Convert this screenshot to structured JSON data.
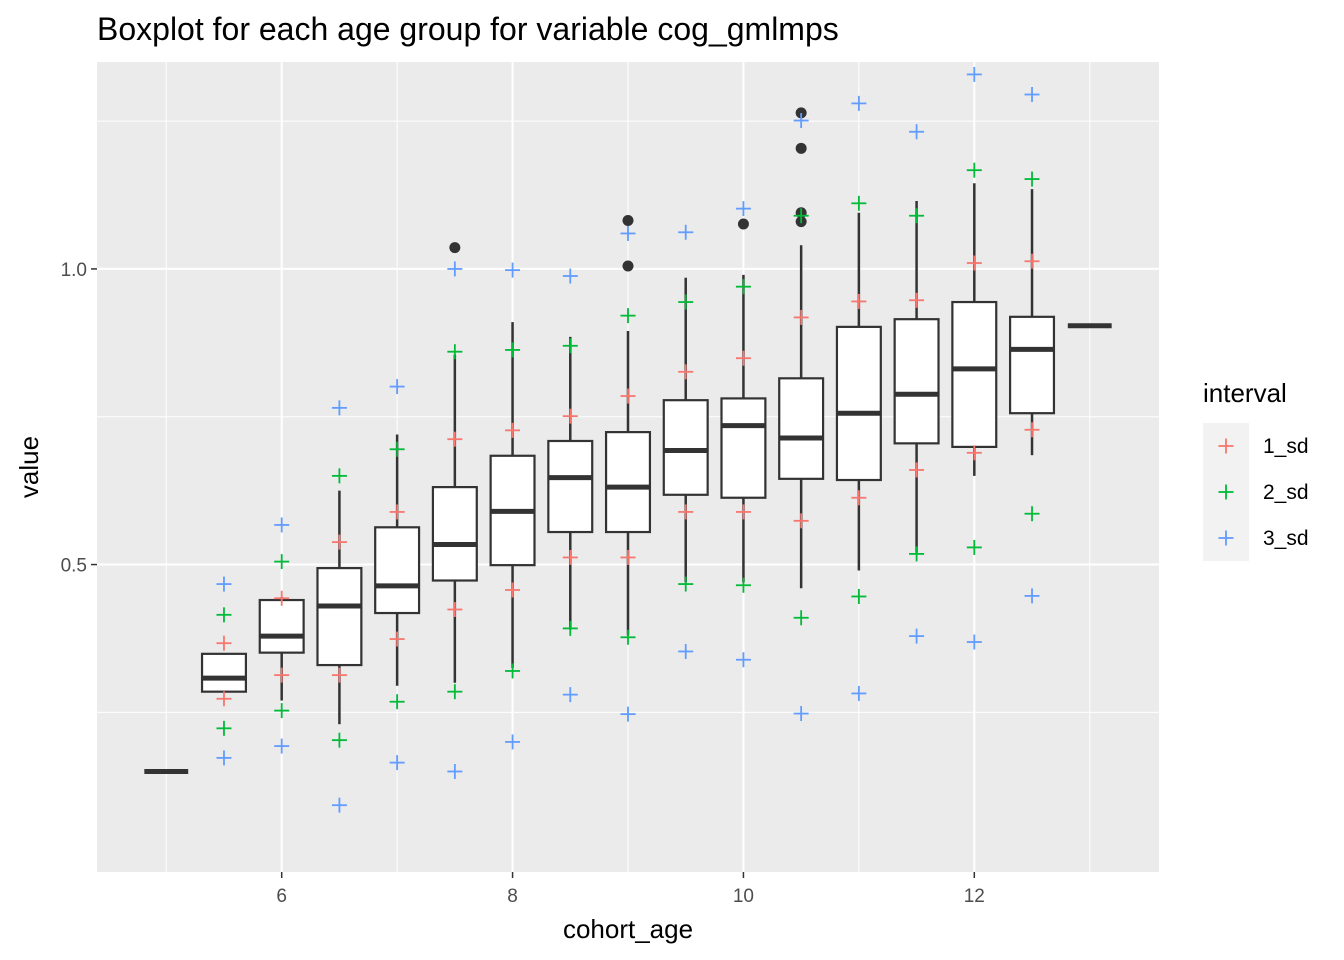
{
  "chart_data": {
    "type": "boxplot",
    "title": "Boxplot for each age group for variable cog_gmlmps",
    "xlabel": "cohort_age",
    "ylabel": "value",
    "xlim": [
      4.4,
      13.6
    ],
    "ylim": [
      -0.02,
      1.35
    ],
    "x_ticks": [
      6,
      8,
      10,
      12
    ],
    "x_tick_labels": [
      "6",
      "8",
      "10",
      "12"
    ],
    "y_ticks": [
      0.5,
      1.0
    ],
    "y_tick_labels": [
      "0.5",
      "1.0"
    ],
    "grid": true,
    "colors": {
      "panel": "#ebebeb",
      "grid": "#ffffff",
      "box_line": "#333333",
      "1_sd": "#f8766d",
      "2_sd": "#00ba38",
      "3_sd": "#619cff"
    },
    "legend": {
      "title": "interval",
      "position": "right",
      "entries": [
        "1_sd",
        "2_sd",
        "3_sd"
      ]
    },
    "boxes": [
      {
        "x": 5.0,
        "q1": 0.15,
        "median": 0.15,
        "q3": 0.15,
        "lower": 0.15,
        "upper": 0.15,
        "outliers": []
      },
      {
        "x": 5.5,
        "q1": 0.285,
        "median": 0.308,
        "q3": 0.349,
        "lower": 0.285,
        "upper": 0.349,
        "outliers": []
      },
      {
        "x": 6.0,
        "q1": 0.351,
        "median": 0.379,
        "q3": 0.44,
        "lower": 0.27,
        "upper": 0.445,
        "outliers": []
      },
      {
        "x": 6.5,
        "q1": 0.33,
        "median": 0.43,
        "q3": 0.494,
        "lower": 0.23,
        "upper": 0.625,
        "outliers": []
      },
      {
        "x": 7.0,
        "q1": 0.418,
        "median": 0.464,
        "q3": 0.563,
        "lower": 0.295,
        "upper": 0.72,
        "outliers": []
      },
      {
        "x": 7.5,
        "q1": 0.473,
        "median": 0.534,
        "q3": 0.631,
        "lower": 0.3,
        "upper": 0.855,
        "outliers": [
          1.036
        ]
      },
      {
        "x": 8.0,
        "q1": 0.499,
        "median": 0.59,
        "q3": 0.684,
        "lower": 0.325,
        "upper": 0.91,
        "outliers": []
      },
      {
        "x": 8.5,
        "q1": 0.555,
        "median": 0.647,
        "q3": 0.709,
        "lower": 0.39,
        "upper": 0.885,
        "outliers": []
      },
      {
        "x": 9.0,
        "q1": 0.555,
        "median": 0.631,
        "q3": 0.724,
        "lower": 0.38,
        "upper": 0.895,
        "outliers": [
          1.082,
          1.005
        ]
      },
      {
        "x": 9.5,
        "q1": 0.618,
        "median": 0.693,
        "q3": 0.778,
        "lower": 0.47,
        "upper": 0.985,
        "outliers": []
      },
      {
        "x": 10.0,
        "q1": 0.613,
        "median": 0.735,
        "q3": 0.781,
        "lower": 0.47,
        "upper": 0.99,
        "outliers": [
          1.076
        ]
      },
      {
        "x": 10.5,
        "q1": 0.645,
        "median": 0.714,
        "q3": 0.815,
        "lower": 0.46,
        "upper": 1.04,
        "outliers": [
          1.264,
          1.204,
          1.095,
          1.08
        ]
      },
      {
        "x": 11.0,
        "q1": 0.643,
        "median": 0.756,
        "q3": 0.902,
        "lower": 0.49,
        "upper": 1.095,
        "outliers": []
      },
      {
        "x": 11.5,
        "q1": 0.705,
        "median": 0.788,
        "q3": 0.915,
        "lower": 0.52,
        "upper": 1.115,
        "outliers": []
      },
      {
        "x": 12.0,
        "q1": 0.699,
        "median": 0.831,
        "q3": 0.944,
        "lower": 0.65,
        "upper": 1.145,
        "outliers": []
      },
      {
        "x": 12.5,
        "q1": 0.756,
        "median": 0.864,
        "q3": 0.919,
        "lower": 0.685,
        "upper": 1.135,
        "outliers": []
      },
      {
        "x": 13.0,
        "q1": 0.904,
        "median": 0.904,
        "q3": 0.904,
        "lower": 0.904,
        "upper": 0.904,
        "outliers": []
      }
    ],
    "series": [
      {
        "name": "1_sd",
        "points": [
          [
            5.5,
            0.367
          ],
          [
            5.5,
            0.273
          ],
          [
            6.0,
            0.443
          ],
          [
            6.0,
            0.313
          ],
          [
            6.5,
            0.538
          ],
          [
            6.5,
            0.313
          ],
          [
            7.0,
            0.589
          ],
          [
            7.0,
            0.374
          ],
          [
            7.5,
            0.712
          ],
          [
            7.5,
            0.424
          ],
          [
            8.0,
            0.727
          ],
          [
            8.0,
            0.457
          ],
          [
            8.5,
            0.751
          ],
          [
            8.5,
            0.512
          ],
          [
            9.0,
            0.785
          ],
          [
            9.0,
            0.512
          ],
          [
            9.5,
            0.826
          ],
          [
            9.5,
            0.589
          ],
          [
            10.0,
            0.849
          ],
          [
            10.0,
            0.589
          ],
          [
            10.5,
            0.918
          ],
          [
            10.5,
            0.574
          ],
          [
            11.0,
            0.945
          ],
          [
            11.0,
            0.613
          ],
          [
            11.5,
            0.947
          ],
          [
            11.5,
            0.66
          ],
          [
            12.0,
            1.01
          ],
          [
            12.0,
            0.689
          ],
          [
            12.5,
            1.013
          ],
          [
            12.5,
            0.728
          ]
        ]
      },
      {
        "name": "2_sd",
        "points": [
          [
            5.5,
            0.415
          ],
          [
            5.5,
            0.223
          ],
          [
            6.0,
            0.505
          ],
          [
            6.0,
            0.253
          ],
          [
            6.5,
            0.65
          ],
          [
            6.5,
            0.203
          ],
          [
            7.0,
            0.695
          ],
          [
            7.0,
            0.268
          ],
          [
            7.5,
            0.86
          ],
          [
            7.5,
            0.285
          ],
          [
            8.0,
            0.863
          ],
          [
            8.0,
            0.32
          ],
          [
            8.5,
            0.87
          ],
          [
            8.5,
            0.392
          ],
          [
            9.0,
            0.921
          ],
          [
            9.0,
            0.377
          ],
          [
            9.5,
            0.944
          ],
          [
            9.5,
            0.467
          ],
          [
            10.0,
            0.97
          ],
          [
            10.0,
            0.465
          ],
          [
            10.5,
            1.09
          ],
          [
            10.5,
            0.41
          ],
          [
            11.0,
            1.111
          ],
          [
            11.0,
            0.446
          ],
          [
            11.5,
            1.09
          ],
          [
            11.5,
            0.518
          ],
          [
            12.0,
            1.167
          ],
          [
            12.0,
            0.529
          ],
          [
            12.5,
            1.152
          ],
          [
            12.5,
            0.586
          ]
        ]
      },
      {
        "name": "3_sd",
        "points": [
          [
            5.5,
            0.467
          ],
          [
            5.5,
            0.173
          ],
          [
            6.0,
            0.567
          ],
          [
            6.0,
            0.193
          ],
          [
            6.5,
            0.765
          ],
          [
            6.5,
            0.093
          ],
          [
            7.0,
            0.801
          ],
          [
            7.0,
            0.165
          ],
          [
            7.5,
            1.0
          ],
          [
            7.5,
            0.15
          ],
          [
            8.0,
            0.998
          ],
          [
            8.0,
            0.2
          ],
          [
            8.5,
            0.988
          ],
          [
            8.5,
            0.28
          ],
          [
            9.0,
            1.06
          ],
          [
            9.0,
            0.247
          ],
          [
            9.5,
            1.062
          ],
          [
            9.5,
            0.353
          ],
          [
            10.0,
            1.102
          ],
          [
            10.0,
            0.339
          ],
          [
            10.5,
            1.251
          ],
          [
            10.5,
            0.248
          ],
          [
            11.0,
            1.28
          ],
          [
            11.0,
            0.282
          ],
          [
            11.5,
            1.232
          ],
          [
            11.5,
            0.379
          ],
          [
            12.0,
            1.329
          ],
          [
            12.0,
            0.369
          ],
          [
            12.5,
            1.295
          ],
          [
            12.5,
            0.447
          ]
        ]
      }
    ]
  }
}
